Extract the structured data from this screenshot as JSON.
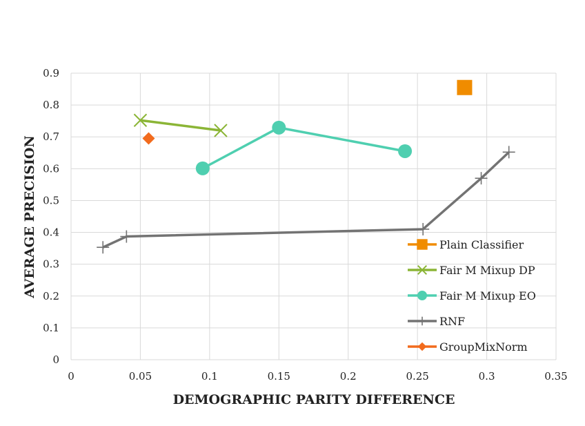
{
  "chart_data": {
    "type": "scatter",
    "title": "",
    "xlabel": "DEMOGRAPHIC PARITY DIFFERENCE",
    "ylabel": "AVERAGE PRECISION",
    "xlim": [
      0,
      0.35
    ],
    "ylim": [
      0,
      0.9
    ],
    "xticks": [
      "0",
      "0.05",
      "0.1",
      "0.15",
      "0.2",
      "0.25",
      "0.3",
      "0.35"
    ],
    "yticks": [
      "0",
      "0.1",
      "0.2",
      "0.3",
      "0.4",
      "0.5",
      "0.6",
      "0.7",
      "0.8",
      "0.9"
    ],
    "grid": "both",
    "legend_position": "bottom-right",
    "series": [
      {
        "name": "Plain Classifier",
        "color": "#f08c00",
        "marker": "square",
        "line": false,
        "points": [
          [
            0.284,
            0.855
          ]
        ]
      },
      {
        "name": "Fair M Mixup DP",
        "color": "#8bb536",
        "marker": "x",
        "line": true,
        "points": [
          [
            0.05,
            0.752
          ],
          [
            0.108,
            0.72
          ]
        ]
      },
      {
        "name": "Fair M Mixup EO",
        "color": "#4fcfb0",
        "marker": "circle",
        "line": true,
        "points": [
          [
            0.095,
            0.601
          ],
          [
            0.15,
            0.729
          ],
          [
            0.241,
            0.655
          ]
        ]
      },
      {
        "name": "RNF",
        "color": "#737373",
        "marker": "plus",
        "line": true,
        "points": [
          [
            0.023,
            0.353
          ],
          [
            0.04,
            0.387
          ],
          [
            0.254,
            0.41
          ],
          [
            0.296,
            0.57
          ],
          [
            0.316,
            0.652
          ]
        ]
      },
      {
        "name": "GroupMixNorm",
        "color": "#f26b1d",
        "marker": "diamond",
        "line": false,
        "points": [
          [
            0.056,
            0.695
          ]
        ]
      }
    ]
  }
}
